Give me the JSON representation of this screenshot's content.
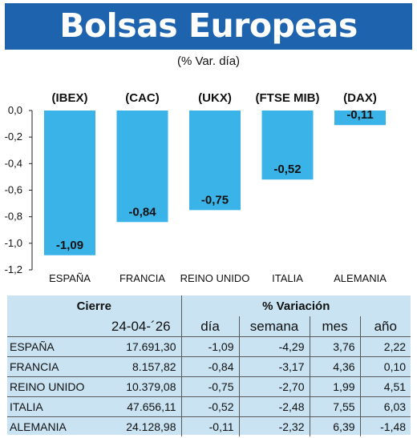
{
  "header": {
    "title": "Bolsas Europeas",
    "subtitle": "(% Var. día)"
  },
  "chart_data": {
    "type": "bar",
    "categories": [
      "ESPAÑA",
      "FRANCIA",
      "REINO UNIDO",
      "ITALIA",
      "ALEMANIA"
    ],
    "codes": [
      "(IBEX)",
      "(CAC)",
      "(UKX)",
      "(FTSE MIB)",
      "(DAX)"
    ],
    "values": [
      -1.09,
      -0.84,
      -0.75,
      -0.52,
      -0.11
    ],
    "value_labels": [
      "-1,09",
      "-0,84",
      "-0,75",
      "-0,52",
      "-0,11"
    ],
    "yticks": [
      "0,0",
      "-0,2",
      "-0,4",
      "-0,6",
      "-0,8",
      "-1,0",
      "-1,2"
    ],
    "ylim": [
      -1.2,
      0
    ],
    "bar_color": "#3ab4e8",
    "grid": false
  },
  "table": {
    "group_headers": {
      "cierre": "Cierre",
      "variacion": "% Variación"
    },
    "columns": {
      "date": "24-04-´26",
      "dia": "día",
      "semana": "semana",
      "mes": "mes",
      "anio": "año"
    },
    "rows": [
      {
        "name": "ESPAÑA",
        "cierre": "17.691,30",
        "dia": "-1,09",
        "semana": "-4,29",
        "mes": "3,76",
        "anio": "2,22"
      },
      {
        "name": "FRANCIA",
        "cierre": "8.157,82",
        "dia": "-0,84",
        "semana": "-3,17",
        "mes": "4,36",
        "anio": "0,10"
      },
      {
        "name": "REINO UNIDO",
        "cierre": "10.379,08",
        "dia": "-0,75",
        "semana": "-2,70",
        "mes": "1,99",
        "anio": "4,51"
      },
      {
        "name": "ITALIA",
        "cierre": "47.656,11",
        "dia": "-0,52",
        "semana": "-2,48",
        "mes": "7,55",
        "anio": "6,03"
      },
      {
        "name": "ALEMANIA",
        "cierre": "24.128,98",
        "dia": "-0,11",
        "semana": "-2,32",
        "mes": "6,39",
        "anio": "-1,48"
      }
    ]
  },
  "colors": {
    "title_bg": "#1e63ae",
    "table_bg": "#c9e3f3"
  }
}
